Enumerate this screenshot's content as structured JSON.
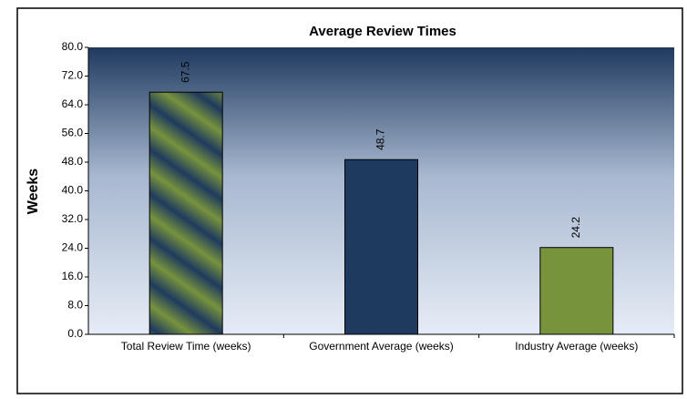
{
  "chart_data": {
    "type": "bar",
    "title": "Average Review Times",
    "y_label": "Weeks",
    "categories": [
      "Total Review Time (weeks)",
      "Government Average (weeks)",
      "Industry Average (weeks)"
    ],
    "values": [
      67.5,
      48.7,
      24.2
    ],
    "colors": [
      "#77933c",
      "#1f3a5f",
      "#77933c"
    ],
    "striped": [
      true,
      false,
      false
    ],
    "ylim": [
      0,
      80
    ],
    "yticks": [
      {
        "value": 0,
        "label": "0.0"
      },
      {
        "value": 8,
        "label": "8.0"
      },
      {
        "value": 16,
        "label": "16.0"
      },
      {
        "value": 24,
        "label": "24.0"
      },
      {
        "value": 32,
        "label": "32.0"
      },
      {
        "value": 40,
        "label": "40.0"
      },
      {
        "value": 48,
        "label": "48.0"
      },
      {
        "value": 56,
        "label": "56.0"
      },
      {
        "value": 64,
        "label": "64.0"
      },
      {
        "value": 72,
        "label": "72.0"
      },
      {
        "value": 80,
        "label": "80.0"
      }
    ],
    "grid": false
  }
}
